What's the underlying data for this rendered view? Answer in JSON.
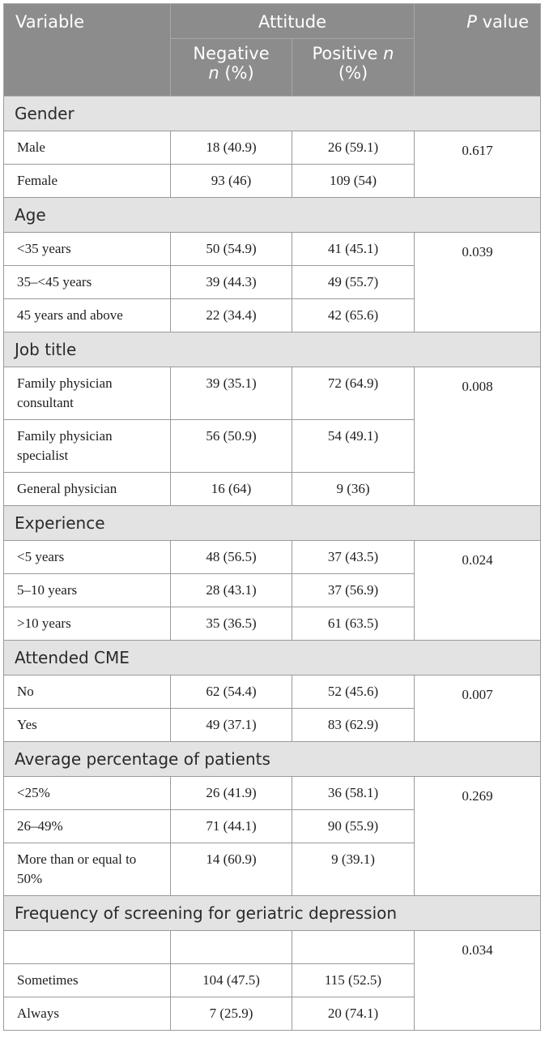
{
  "header": {
    "variable": "Variable",
    "attitude": "Attitude",
    "p_value_p": "P",
    "p_value_rest": " value",
    "negative_line1": "Negative",
    "negative_n": "n",
    "negative_pct": " (%)",
    "positive_line1": "Positive ",
    "positive_n": "n",
    "positive_pct": "(%)"
  },
  "sections": [
    {
      "title": "Gender",
      "p_value": "0.617",
      "rows": [
        {
          "label": "Male",
          "negative": "18 (40.9)",
          "positive": "26 (59.1)"
        },
        {
          "label": "Female",
          "negative": "93 (46)",
          "positive": "109 (54)"
        }
      ]
    },
    {
      "title": "Age",
      "p_value": "0.039",
      "rows": [
        {
          "label": "<35 years",
          "negative": "50 (54.9)",
          "positive": "41 (45.1)"
        },
        {
          "label": "35–<45 years",
          "negative": "39 (44.3)",
          "positive": "49 (55.7)"
        },
        {
          "label": "45 years and above",
          "negative": "22 (34.4)",
          "positive": "42 (65.6)"
        }
      ]
    },
    {
      "title": "Job title",
      "p_value": "0.008",
      "rows": [
        {
          "label": "Family physician consultant",
          "negative": "39 (35.1)",
          "positive": "72 (64.9)"
        },
        {
          "label": "Family physician specialist",
          "negative": "56 (50.9)",
          "positive": "54 (49.1)"
        },
        {
          "label": "General physician",
          "negative": "16 (64)",
          "positive": "9 (36)"
        }
      ]
    },
    {
      "title": "Experience",
      "p_value": "0.024",
      "rows": [
        {
          "label": "<5 years",
          "negative": "48 (56.5)",
          "positive": "37 (43.5)"
        },
        {
          "label": "5–10 years",
          "negative": "28 (43.1)",
          "positive": "37 (56.9)"
        },
        {
          "label": ">10 years",
          "negative": "35 (36.5)",
          "positive": "61 (63.5)"
        }
      ]
    },
    {
      "title": "Attended CME",
      "p_value": "0.007",
      "rows": [
        {
          "label": "No",
          "negative": "62 (54.4)",
          "positive": "52 (45.6)"
        },
        {
          "label": "Yes",
          "negative": "49 (37.1)",
          "positive": "83 (62.9)"
        }
      ]
    },
    {
      "title": "Average percentage of patients",
      "p_value": "0.269",
      "rows": [
        {
          "label": "<25%",
          "negative": "26 (41.9)",
          "positive": "36 (58.1)"
        },
        {
          "label": "26–49%",
          "negative": "71 (44.1)",
          "positive": "90 (55.9)"
        },
        {
          "label": "More than or equal to 50%",
          "negative": "14 (60.9)",
          "positive": "9 (39.1)"
        }
      ]
    },
    {
      "title": "Frequency of screening for geriatric depression",
      "p_value": "0.034",
      "rows": [
        {
          "label": "",
          "negative": "",
          "positive": ""
        },
        {
          "label": "Sometimes",
          "negative": "104 (47.5)",
          "positive": "115 (52.5)"
        },
        {
          "label": "Always",
          "negative": "7 (25.9)",
          "positive": "20 (74.1)"
        }
      ]
    }
  ]
}
